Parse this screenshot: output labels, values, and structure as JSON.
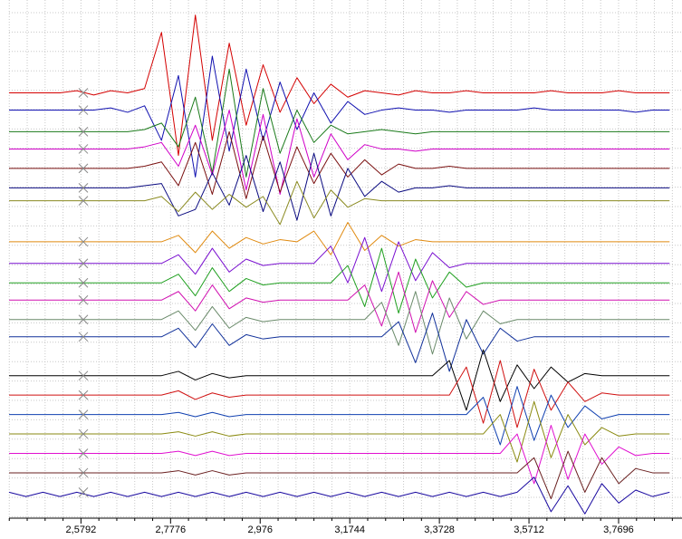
{
  "chart_data": {
    "type": "line",
    "x": [
      2.42,
      2.4575,
      2.495,
      2.5325,
      2.57,
      2.6075,
      2.645,
      2.6825,
      2.72,
      2.7575,
      2.795,
      2.8325,
      2.87,
      2.9075,
      2.945,
      2.9825,
      3.02,
      3.0575,
      3.095,
      3.1325,
      3.17,
      3.2075,
      3.245,
      3.2825,
      3.32,
      3.3575,
      3.395,
      3.4325,
      3.47,
      3.5075,
      3.545,
      3.5825,
      3.62,
      3.6575,
      3.695,
      3.7325,
      3.77,
      3.8075,
      3.845,
      3.8825
    ],
    "xlim": [
      2.42,
      3.91
    ],
    "xticks": [
      {
        "value": 2.5792,
        "label": "2,5792"
      },
      {
        "value": 2.7776,
        "label": "2,7776"
      },
      {
        "value": 2.976,
        "label": "2,976"
      },
      {
        "value": 3.1744,
        "label": "3,1744"
      },
      {
        "value": 3.3728,
        "label": "3,3728"
      },
      {
        "value": 3.5712,
        "label": "3,5712"
      },
      {
        "value": 3.7696,
        "label": "3,7696"
      }
    ],
    "ylim": [
      0,
      24
    ],
    "grid": true,
    "series": [
      {
        "color": "#d40000",
        "values": [
          19.7,
          19.7,
          19.7,
          19.7,
          19.8,
          19.6,
          19.8,
          19.7,
          19.9,
          22.5,
          16.8,
          23.3,
          17.5,
          22.0,
          18.2,
          21.0,
          18.8,
          20.4,
          19.2,
          20.1,
          19.5,
          19.8,
          19.7,
          19.6,
          19.8,
          19.7,
          19.7,
          19.8,
          19.7,
          19.7,
          19.7,
          19.7,
          19.8,
          19.7,
          19.7,
          19.7,
          19.8,
          19.7,
          19.7,
          19.7
        ]
      },
      {
        "color": "#1010b0",
        "values": [
          18.9,
          18.9,
          18.9,
          18.9,
          18.9,
          18.9,
          19.0,
          18.8,
          19.1,
          17.5,
          20.5,
          15.8,
          21.4,
          17.0,
          20.8,
          17.5,
          20.2,
          18.0,
          19.7,
          18.3,
          19.3,
          18.7,
          18.9,
          19.0,
          18.9,
          18.9,
          18.8,
          18.9,
          18.9,
          18.9,
          18.9,
          19.0,
          18.9,
          18.9,
          18.9,
          18.9,
          18.9,
          18.8,
          18.9,
          18.9
        ]
      },
      {
        "color": "#1a7a1a",
        "values": [
          17.9,
          17.9,
          17.9,
          17.9,
          17.9,
          17.9,
          17.9,
          17.9,
          18.0,
          18.3,
          17.2,
          19.5,
          16.0,
          20.8,
          15.8,
          19.9,
          16.9,
          18.9,
          17.4,
          18.2,
          17.8,
          17.9,
          18.0,
          17.9,
          17.8,
          17.9,
          17.9,
          17.9,
          17.9,
          17.9,
          17.9,
          17.9,
          17.9,
          17.9,
          17.9,
          17.9,
          17.9,
          17.9,
          17.9,
          17.9
        ]
      },
      {
        "color": "#d000c8",
        "values": [
          17.1,
          17.1,
          17.1,
          17.1,
          17.1,
          17.1,
          17.1,
          17.1,
          17.2,
          17.4,
          16.3,
          18.2,
          15.9,
          18.9,
          15.2,
          18.7,
          15.0,
          18.5,
          15.8,
          17.8,
          16.6,
          17.3,
          17.1,
          17.1,
          17.0,
          17.1,
          17.1,
          17.1,
          17.1,
          17.1,
          17.1,
          17.1,
          17.1,
          17.1,
          17.1,
          17.1,
          17.1,
          17.1,
          17.1,
          17.1
        ]
      },
      {
        "color": "#7a1010",
        "values": [
          16.2,
          16.2,
          16.2,
          16.2,
          16.2,
          16.2,
          16.2,
          16.2,
          16.3,
          16.5,
          15.4,
          17.4,
          15.0,
          17.9,
          14.8,
          17.7,
          15.1,
          17.2,
          15.5,
          16.9,
          15.8,
          16.6,
          15.9,
          16.4,
          16.2,
          16.2,
          16.3,
          16.2,
          16.2,
          16.2,
          16.2,
          16.2,
          16.2,
          16.2,
          16.2,
          16.2,
          16.2,
          16.2,
          16.2,
          16.2
        ]
      },
      {
        "color": "#0a0a80",
        "values": [
          15.3,
          15.3,
          15.3,
          15.3,
          15.3,
          15.3,
          15.3,
          15.3,
          15.4,
          15.5,
          14.0,
          14.3,
          16.0,
          14.5,
          16.8,
          14.2,
          16.5,
          13.8,
          16.9,
          14.0,
          16.2,
          14.9,
          15.6,
          15.1,
          15.3,
          15.3,
          15.4,
          15.3,
          15.3,
          15.3,
          15.3,
          15.3,
          15.3,
          15.3,
          15.3,
          15.3,
          15.3,
          15.3,
          15.3,
          15.3
        ]
      },
      {
        "color": "#8a8a20",
        "values": [
          14.7,
          14.7,
          14.7,
          14.7,
          14.7,
          14.7,
          14.7,
          14.7,
          14.7,
          14.9,
          14.2,
          15.1,
          14.3,
          15.0,
          14.4,
          14.9,
          13.6,
          15.6,
          13.9,
          15.2,
          14.4,
          14.8,
          14.7,
          14.7,
          14.7,
          14.7,
          14.7,
          14.7,
          14.7,
          14.7,
          14.7,
          14.7,
          14.7,
          14.7,
          14.7,
          14.7,
          14.7,
          14.7,
          14.7,
          14.7
        ]
      },
      {
        "color": "#e08a10",
        "values": [
          12.8,
          12.8,
          12.8,
          12.8,
          12.8,
          12.8,
          12.8,
          12.8,
          12.8,
          12.8,
          13.1,
          12.3,
          13.3,
          12.5,
          13.0,
          12.7,
          12.9,
          12.8,
          13.3,
          12.2,
          13.7,
          12.4,
          13.1,
          12.6,
          12.9,
          12.8,
          12.8,
          12.8,
          12.8,
          12.8,
          12.8,
          12.8,
          12.8,
          12.8,
          12.8,
          12.8,
          12.8,
          12.8,
          12.8,
          12.8
        ]
      },
      {
        "color": "#7a10d0",
        "values": [
          11.8,
          11.8,
          11.8,
          11.8,
          11.8,
          11.8,
          11.8,
          11.8,
          11.8,
          11.8,
          12.2,
          11.3,
          12.5,
          11.4,
          12.0,
          11.7,
          11.8,
          11.8,
          11.8,
          12.6,
          10.9,
          13.0,
          10.5,
          12.8,
          11.0,
          12.3,
          11.6,
          11.8,
          11.8,
          11.8,
          11.8,
          11.8,
          11.8,
          11.8,
          11.8,
          11.8,
          11.8,
          11.8,
          11.8,
          11.8
        ]
      },
      {
        "color": "#20a020",
        "values": [
          10.9,
          10.9,
          10.9,
          10.9,
          10.9,
          10.9,
          10.9,
          10.9,
          10.9,
          10.9,
          11.3,
          10.3,
          11.6,
          10.5,
          11.1,
          10.8,
          10.9,
          10.9,
          10.9,
          10.9,
          11.7,
          9.8,
          12.5,
          9.5,
          12.0,
          10.2,
          11.4,
          10.7,
          10.9,
          10.9,
          10.9,
          10.9,
          10.9,
          10.9,
          10.9,
          10.9,
          10.9,
          10.9,
          10.9,
          10.9
        ]
      },
      {
        "color": "#d010b0",
        "values": [
          10.1,
          10.1,
          10.1,
          10.1,
          10.1,
          10.1,
          10.1,
          10.1,
          10.1,
          10.1,
          10.5,
          9.6,
          10.8,
          9.7,
          10.2,
          10.0,
          10.1,
          10.1,
          10.1,
          10.1,
          10.1,
          10.8,
          8.9,
          11.4,
          8.6,
          11.0,
          9.3,
          10.5,
          9.9,
          10.1,
          10.1,
          10.1,
          10.1,
          10.1,
          10.1,
          10.1,
          10.1,
          10.1,
          10.1,
          10.1
        ]
      },
      {
        "color": "#6a8a6a",
        "values": [
          9.2,
          9.2,
          9.2,
          9.2,
          9.2,
          9.2,
          9.2,
          9.2,
          9.2,
          9.2,
          9.6,
          8.7,
          9.8,
          8.8,
          9.3,
          9.1,
          9.2,
          9.2,
          9.2,
          9.2,
          9.2,
          9.2,
          10.0,
          8.0,
          10.5,
          7.6,
          10.2,
          8.3,
          9.6,
          9.0,
          9.2,
          9.2,
          9.2,
          9.2,
          9.2,
          9.2,
          9.2,
          9.2,
          9.2,
          9.2
        ]
      },
      {
        "color": "#10309a",
        "values": [
          8.4,
          8.4,
          8.4,
          8.4,
          8.4,
          8.4,
          8.4,
          8.4,
          8.4,
          8.4,
          8.8,
          7.9,
          9.0,
          8.0,
          8.5,
          8.3,
          8.4,
          8.4,
          8.4,
          8.4,
          8.4,
          8.4,
          8.4,
          9.1,
          7.2,
          9.5,
          6.8,
          9.2,
          7.6,
          8.8,
          8.2,
          8.4,
          8.4,
          8.4,
          8.4,
          8.4,
          8.4,
          8.4,
          8.4,
          8.4
        ]
      },
      {
        "color": "#000000",
        "values": [
          6.6,
          6.6,
          6.6,
          6.6,
          6.6,
          6.6,
          6.6,
          6.6,
          6.6,
          6.6,
          6.8,
          6.4,
          6.7,
          6.5,
          6.6,
          6.6,
          6.6,
          6.6,
          6.6,
          6.6,
          6.6,
          6.6,
          6.6,
          6.6,
          6.6,
          6.6,
          7.3,
          5.0,
          7.8,
          5.4,
          7.1,
          6.0,
          7.0,
          6.3,
          6.7,
          6.6,
          6.6,
          6.6,
          6.6,
          6.6
        ]
      },
      {
        "color": "#d01010",
        "values": [
          5.7,
          5.7,
          5.7,
          5.7,
          5.7,
          5.7,
          5.7,
          5.7,
          5.7,
          5.7,
          5.9,
          5.5,
          5.8,
          5.6,
          5.7,
          5.7,
          5.7,
          5.7,
          5.7,
          5.7,
          5.7,
          5.7,
          5.7,
          5.7,
          5.7,
          5.7,
          5.7,
          7.0,
          4.4,
          7.3,
          4.2,
          6.9,
          5.0,
          6.3,
          5.4,
          5.8,
          5.7,
          5.7,
          5.7,
          5.7
        ]
      },
      {
        "color": "#1040b0",
        "values": [
          4.8,
          4.8,
          4.8,
          4.8,
          4.8,
          4.8,
          4.8,
          4.8,
          4.8,
          4.8,
          4.9,
          4.7,
          4.9,
          4.7,
          4.8,
          4.8,
          4.8,
          4.8,
          4.8,
          4.8,
          4.8,
          4.8,
          4.8,
          4.8,
          4.8,
          4.8,
          4.8,
          4.8,
          5.6,
          3.4,
          6.1,
          3.6,
          5.7,
          4.2,
          5.2,
          4.6,
          4.8,
          4.8,
          4.8,
          4.8
        ]
      },
      {
        "color": "#8a8a10",
        "values": [
          3.9,
          3.9,
          3.9,
          3.9,
          3.9,
          3.9,
          3.9,
          3.9,
          3.9,
          3.9,
          4.0,
          3.8,
          4.0,
          3.8,
          3.9,
          3.9,
          3.9,
          3.9,
          3.9,
          3.9,
          3.9,
          3.9,
          3.9,
          3.9,
          3.9,
          3.9,
          3.9,
          3.9,
          3.9,
          4.8,
          2.6,
          5.4,
          2.8,
          4.8,
          3.4,
          4.2,
          3.8,
          3.9,
          3.9,
          3.9
        ]
      },
      {
        "color": "#e010d0",
        "values": [
          3.0,
          3.0,
          3.0,
          3.0,
          3.0,
          3.0,
          3.0,
          3.0,
          3.0,
          3.0,
          3.1,
          2.9,
          3.1,
          2.9,
          3.0,
          3.0,
          3.0,
          3.0,
          3.0,
          3.0,
          3.0,
          3.0,
          3.0,
          3.0,
          3.0,
          3.0,
          3.0,
          3.0,
          3.0,
          3.0,
          3.9,
          1.6,
          4.3,
          1.8,
          3.9,
          2.5,
          3.3,
          2.9,
          3.0,
          3.0
        ]
      },
      {
        "color": "#6a2020",
        "values": [
          2.1,
          2.1,
          2.1,
          2.1,
          2.1,
          2.1,
          2.1,
          2.1,
          2.1,
          2.1,
          2.2,
          2.0,
          2.2,
          2.0,
          2.1,
          2.1,
          2.1,
          2.1,
          2.1,
          2.1,
          2.1,
          2.1,
          2.1,
          2.1,
          2.1,
          2.1,
          2.1,
          2.1,
          2.1,
          2.1,
          2.1,
          2.8,
          0.9,
          3.1,
          1.2,
          2.8,
          1.6,
          2.3,
          2.1,
          2.1
        ]
      },
      {
        "color": "#1a0aa0",
        "values": [
          1.2,
          1.0,
          1.2,
          1.0,
          1.2,
          1.0,
          1.2,
          1.0,
          1.2,
          1.0,
          1.2,
          1.0,
          1.2,
          1.0,
          1.2,
          1.0,
          1.2,
          1.0,
          1.2,
          1.0,
          1.2,
          1.0,
          1.2,
          1.0,
          1.2,
          1.0,
          1.2,
          1.0,
          1.2,
          1.0,
          1.2,
          1.9,
          0.3,
          1.5,
          0.2,
          1.6,
          0.7,
          1.3,
          1.0,
          1.2
        ]
      }
    ]
  }
}
